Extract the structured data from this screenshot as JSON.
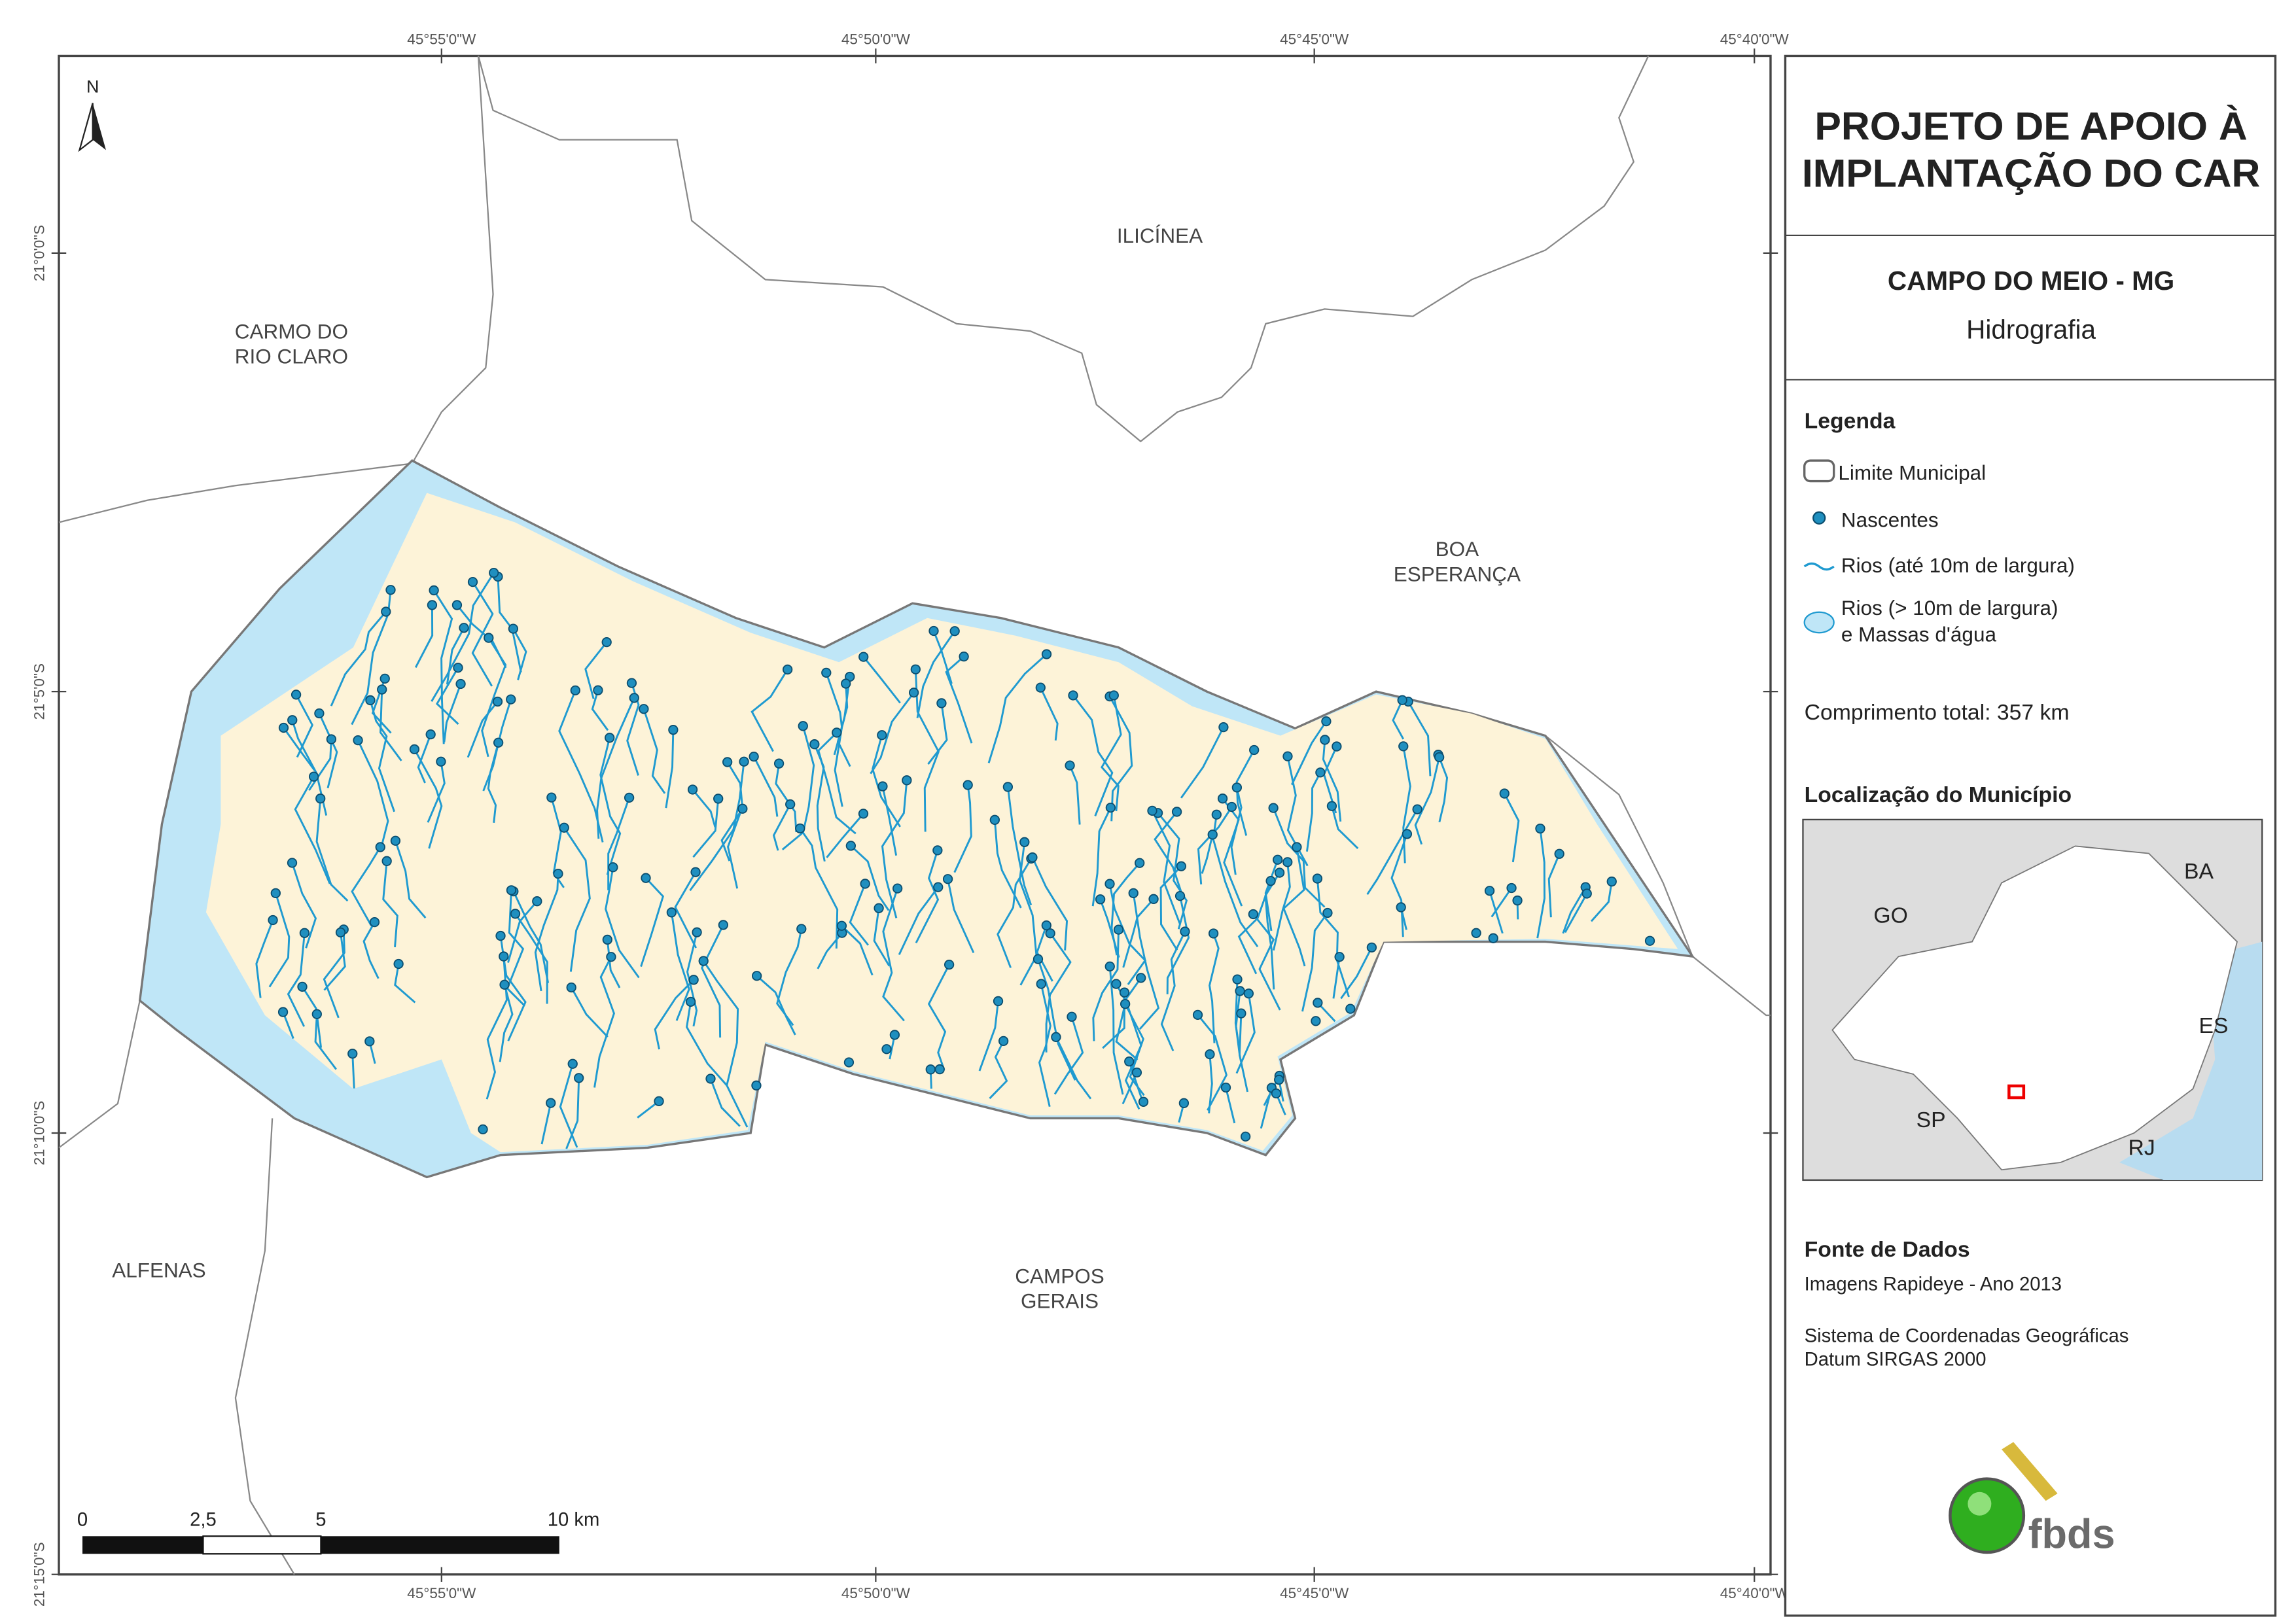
{
  "map": {
    "coordinates": {
      "top": [
        "45°55'0\"W",
        "45°50'0\"W",
        "45°45'0\"W",
        "45°40'0\"W"
      ],
      "bottom": [
        "45°55'0\"W",
        "45°50'0\"W",
        "45°45'0\"W",
        "45°40'0\"W"
      ],
      "left": [
        "21°0'0\"S",
        "21°5'0\"S",
        "21°10'0\"S",
        "21°15'0\"S"
      ]
    },
    "places": [
      [
        "ILICÍNEA"
      ],
      [
        "CARMO DO",
        "RIO CLARO"
      ],
      [
        "BOA",
        "ESPERANÇA"
      ],
      [
        "ALFENAS"
      ],
      [
        "CAMPOS",
        "GERAIS"
      ]
    ],
    "north": "N",
    "scale": [
      "0",
      "2,5",
      "5",
      "10 km"
    ]
  },
  "panel": {
    "title": [
      "PROJETO DE APOIO À",
      "IMPLANTAÇÃO DO CAR"
    ],
    "municipality": "CAMPO DO MEIO - MG",
    "theme": "Hidrografia",
    "legend": {
      "title": "Legenda",
      "items": [
        [
          "Limite Municipal"
        ],
        [
          "Nascentes"
        ],
        [
          "Rios (até 10m de largura)"
        ],
        [
          "Rios (> 10m de largura)",
          "e Massas d'água"
        ]
      ]
    },
    "total_length": "Comprimento total:  357 km",
    "location": {
      "title": "Localização do Município",
      "states": [
        "GO",
        "BA",
        "ES",
        "SP",
        "RJ"
      ]
    },
    "source": {
      "title": "Fonte de Dados",
      "lines": [
        "Imagens Rapideye - Ano 2013",
        "Sistema de Coordenadas Geográficas",
        "Datum SIRGAS 2000"
      ]
    },
    "logo": "fbds"
  }
}
